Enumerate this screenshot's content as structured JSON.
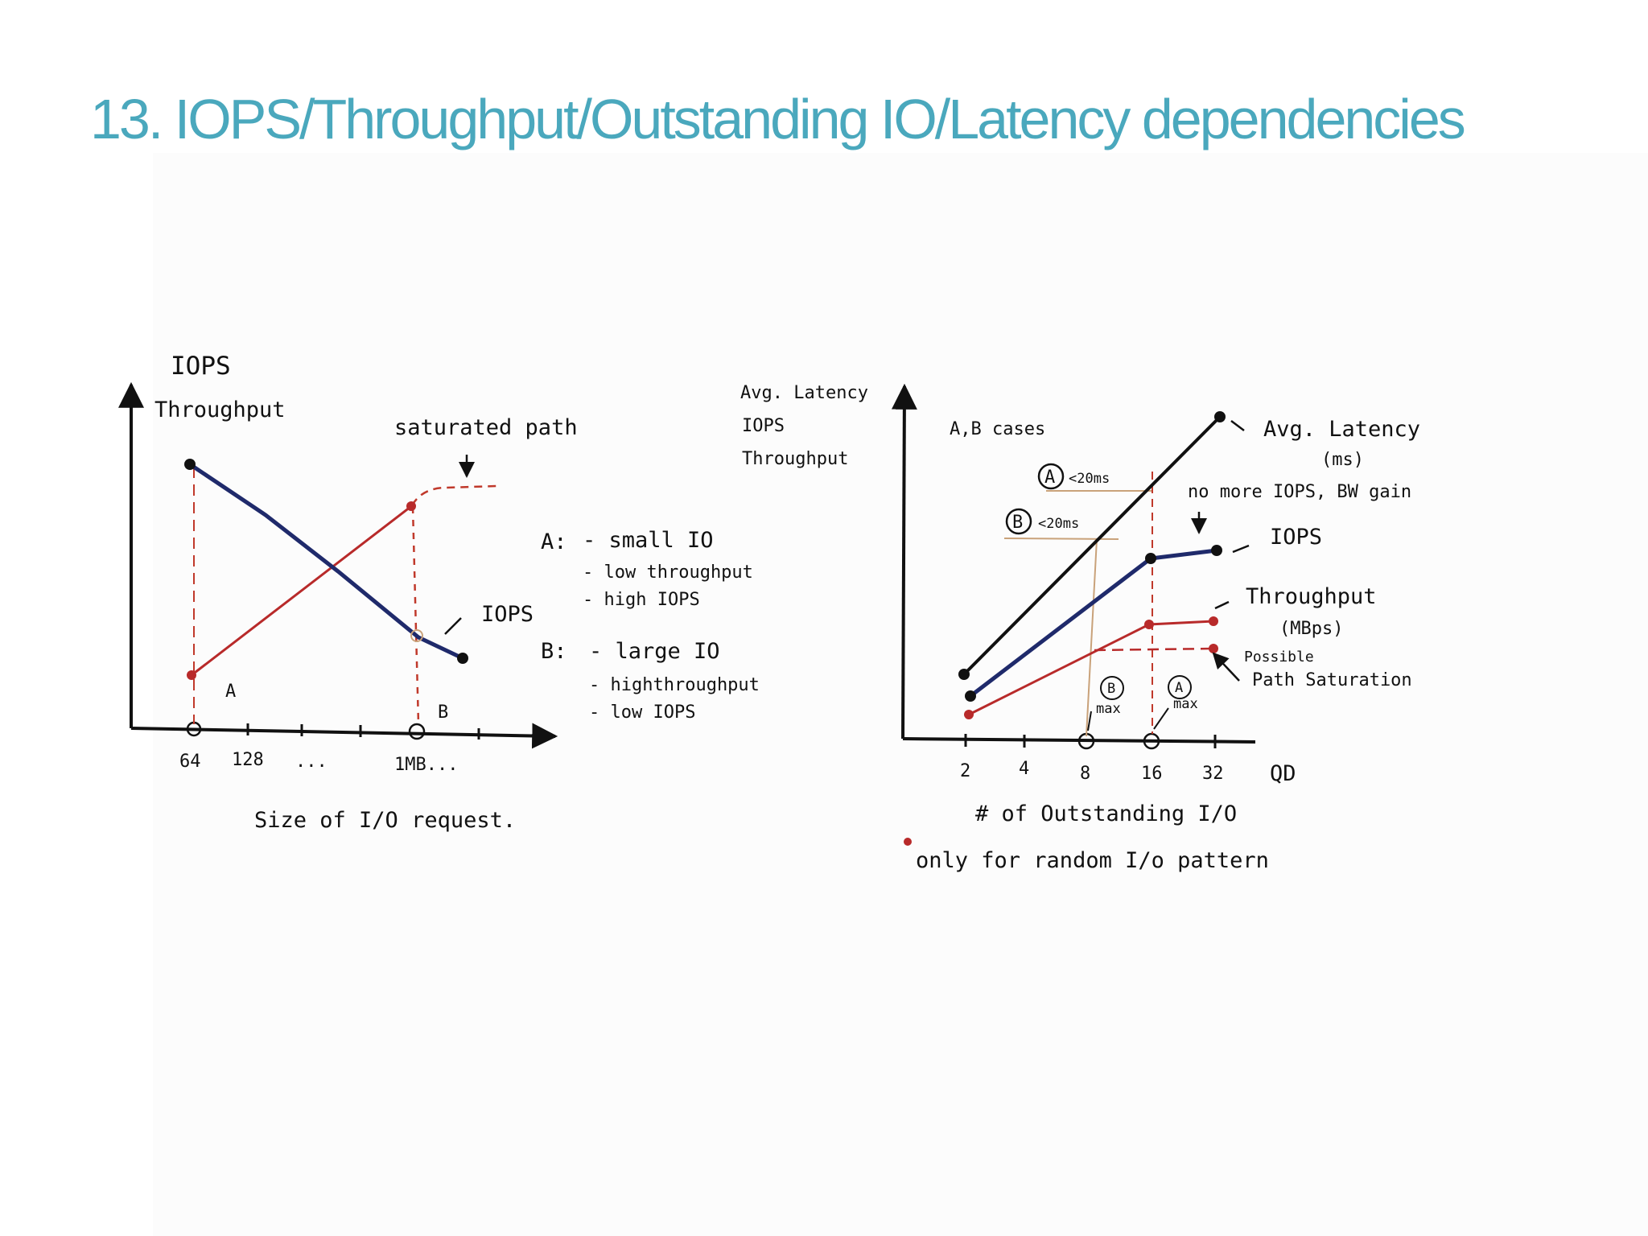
{
  "slide": {
    "title": "13. IOPS/Throughput/Outstanding IO/Latency dependencies"
  },
  "colors": {
    "title": "#4aa8bd",
    "ink": "#111111",
    "iops_line": "#1f2a6b",
    "throughput_line": "#b82a2a",
    "guide_dashed": "#c0392b",
    "guide_tan": "#c9a27a"
  },
  "left_sketch": {
    "y_label_1": "IOPS",
    "y_label_2": "Throughput",
    "saturated_label": "saturated path",
    "iops_curve_label": "IOPS",
    "point_a_label": "A",
    "point_b_label": "B",
    "x_ticks": [
      "64",
      "128",
      "...",
      "1MB..."
    ],
    "x_axis_label": "Size of I/O request.",
    "notes": {
      "a_head": "A:",
      "a_lines": [
        "- small IO",
        "- low throughput",
        "- high IOPS"
      ],
      "b_head": "B:",
      "b_lines": [
        "- large IO",
        "- highthroughput",
        "- low IOPS"
      ]
    }
  },
  "right_sketch": {
    "y_labels": [
      "Avg. Latency",
      "IOPS",
      "Throughput"
    ],
    "ab_cases": "A,B cases",
    "marker_a": "A",
    "marker_b": "B",
    "a_latency": "<20ms",
    "b_latency": "<20ms",
    "avg_latency_label": "Avg. Latency",
    "avg_latency_unit": "(ms)",
    "no_more_label": "no more IOPS, BW gain",
    "iops_label": "IOPS",
    "throughput_label": "Throughput",
    "throughput_unit": "(MBps)",
    "possible_label": "Possible",
    "path_saturation_label": "Path Saturation",
    "b_max_marker": "B",
    "b_max_label": "max",
    "a_max_marker": "A",
    "a_max_label": "max",
    "x_ticks": [
      "2",
      "4",
      "8",
      "16",
      "32"
    ],
    "x_axis_end": "QD",
    "x_axis_label": "# of Outstanding I/O",
    "footnote": "only for random I/o pattern"
  }
}
